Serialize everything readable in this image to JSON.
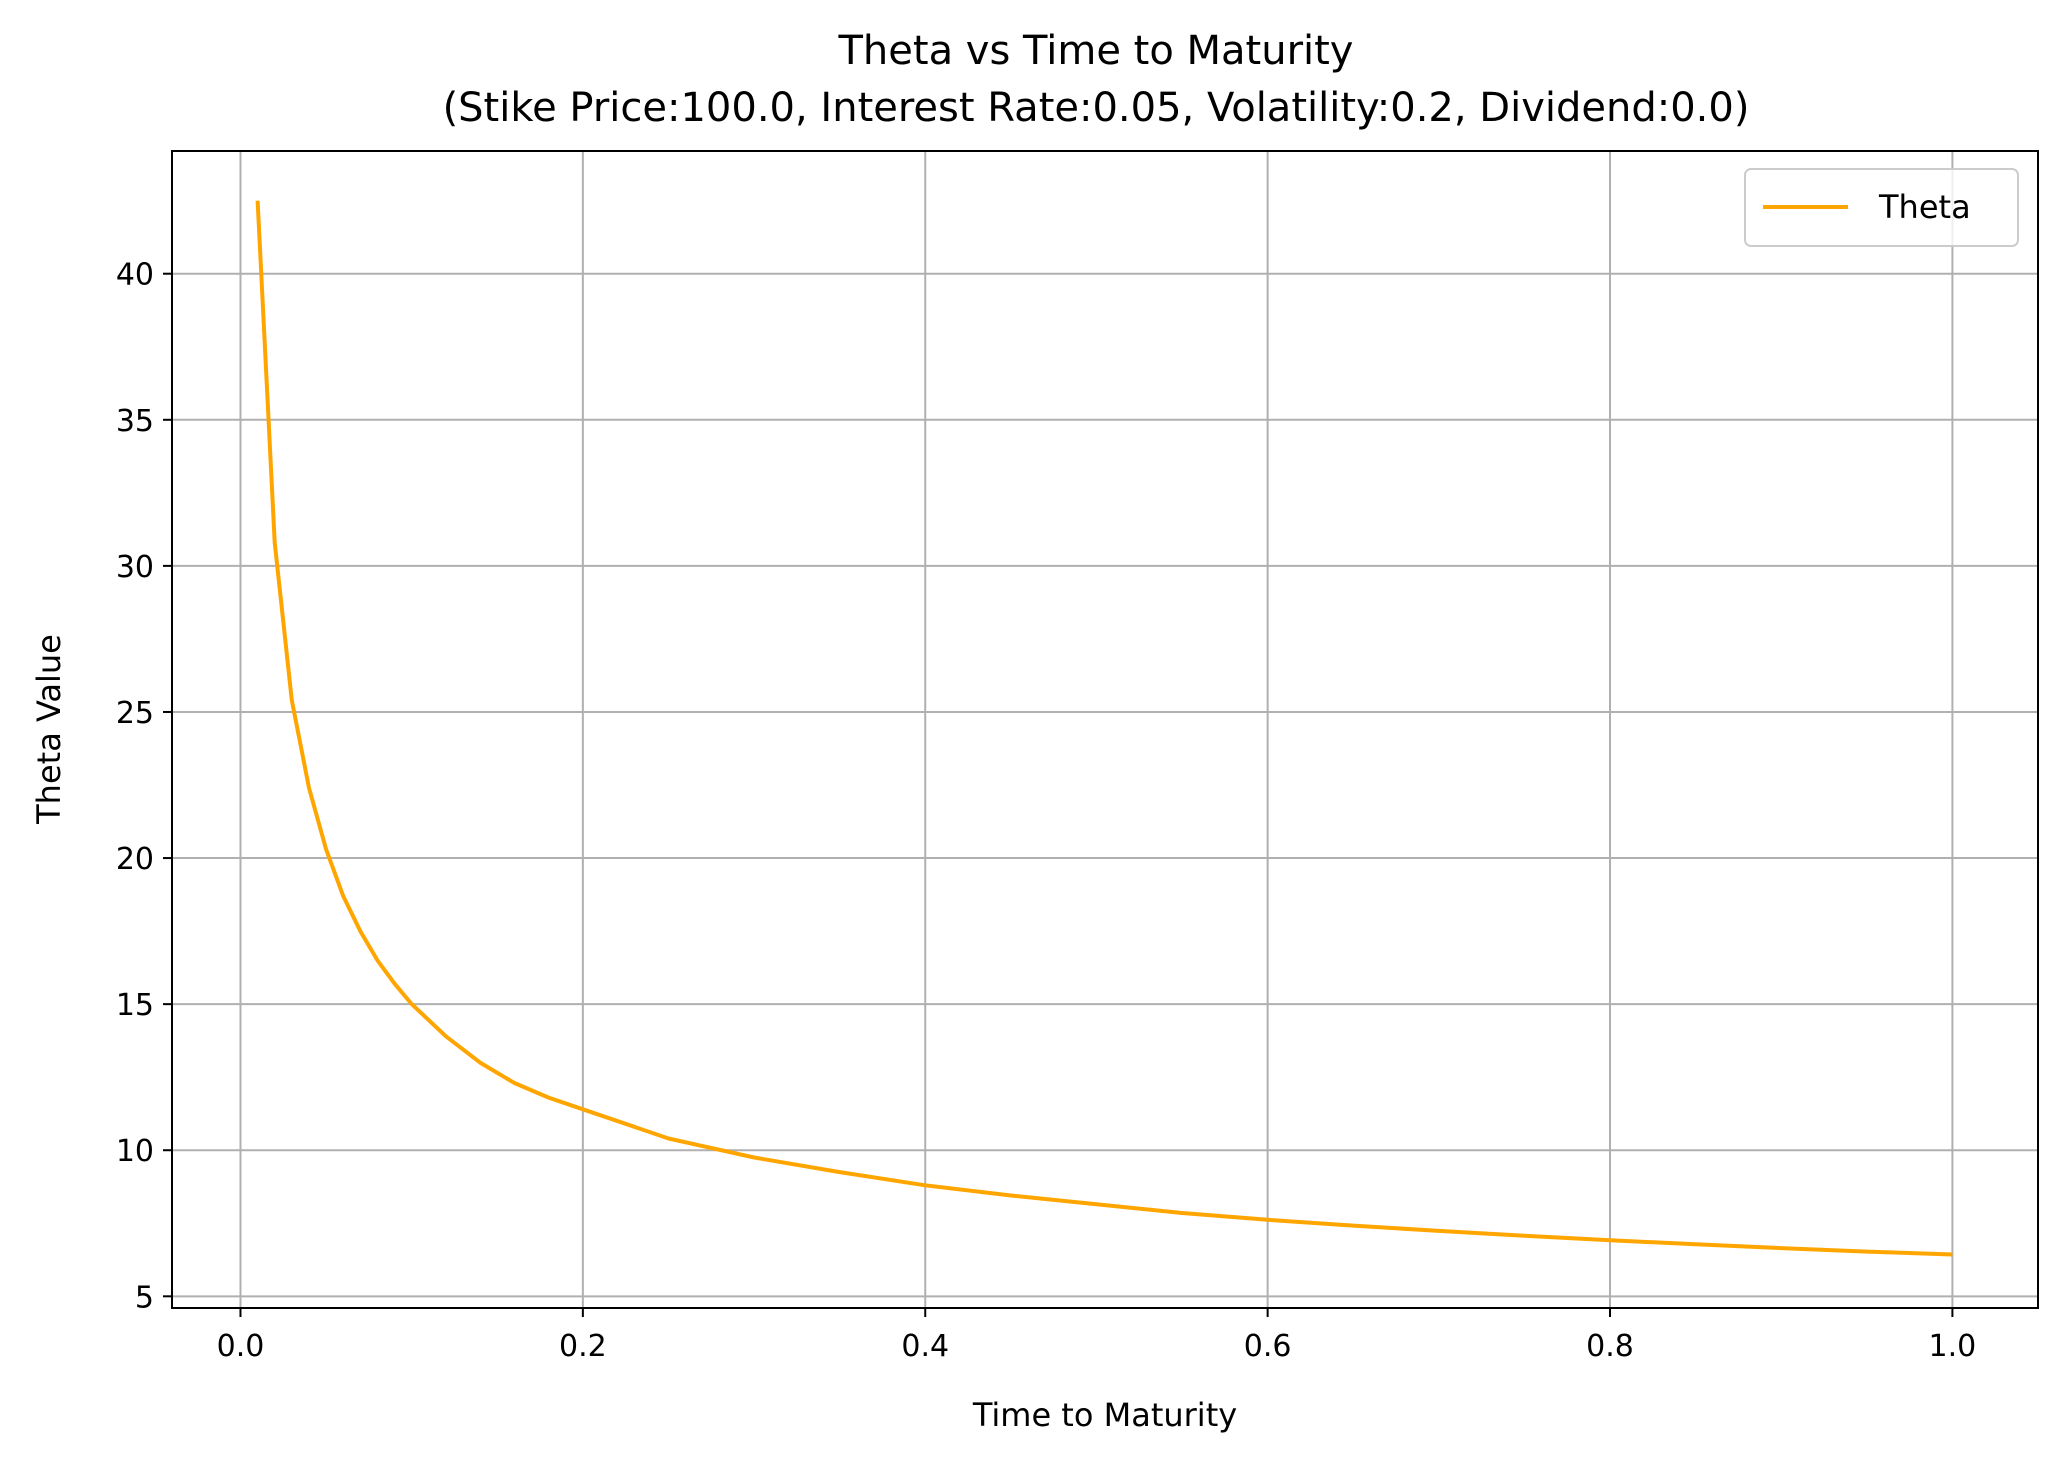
{
  "chart_data": {
    "type": "line",
    "title": "Theta vs Time to Maturity",
    "subtitle": "(Stike Price:100.0, Interest Rate:0.05, Volatility:0.2, Dividend:0.0)",
    "xlabel": "Time to Maturity",
    "ylabel": "Theta Value",
    "xlim": [
      -0.04,
      1.05
    ],
    "ylim": [
      4.6,
      44.2
    ],
    "xticks": [
      0.0,
      0.2,
      0.4,
      0.6,
      0.8,
      1.0
    ],
    "xtick_labels": [
      "0.0",
      "0.2",
      "0.4",
      "0.6",
      "0.8",
      "1.0"
    ],
    "yticks": [
      5,
      10,
      15,
      20,
      25,
      30,
      35,
      40
    ],
    "ytick_labels": [
      "5",
      "10",
      "15",
      "20",
      "25",
      "30",
      "35",
      "40"
    ],
    "grid": true,
    "legend_position": "top-right",
    "series": [
      {
        "name": "Theta",
        "color": "#ffa500",
        "x": [
          0.01,
          0.02,
          0.03,
          0.04,
          0.05,
          0.06,
          0.07,
          0.08,
          0.09,
          0.1,
          0.12,
          0.14,
          0.16,
          0.18,
          0.2,
          0.25,
          0.3,
          0.35,
          0.4,
          0.45,
          0.5,
          0.55,
          0.6,
          0.65,
          0.7,
          0.75,
          0.8,
          0.85,
          0.9,
          0.95,
          1.0
        ],
        "y": [
          42.5,
          30.8,
          25.4,
          22.4,
          20.3,
          18.7,
          17.5,
          16.5,
          15.7,
          15.0,
          13.9,
          13.0,
          12.3,
          11.8,
          11.4,
          10.4,
          9.75,
          9.25,
          8.8,
          8.45,
          8.15,
          7.85,
          7.62,
          7.42,
          7.24,
          7.07,
          6.92,
          6.78,
          6.65,
          6.53,
          6.43
        ]
      }
    ]
  }
}
